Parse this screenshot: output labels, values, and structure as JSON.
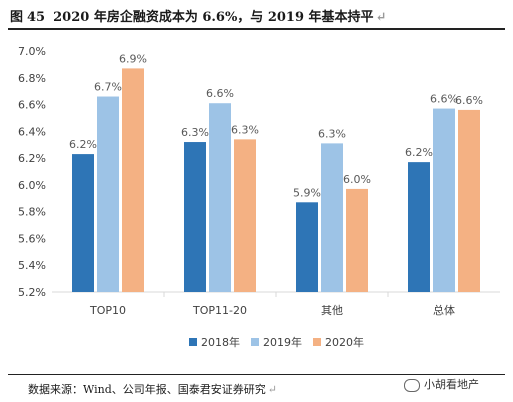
{
  "header": {
    "figure_label": "图",
    "figure_number": "45",
    "title": "2020 年房企融资成本为 6.6%，与 2019 年基本持平",
    "edit_mark": "↵"
  },
  "footer": {
    "source": "数据来源：Wind、公司年报、国泰君安证券研究",
    "edit_mark": "↵",
    "watermark": "小胡看地产"
  },
  "chart_data": {
    "type": "bar",
    "categories": [
      "TOP10",
      "TOP11-20",
      "其他",
      "总体"
    ],
    "series": [
      {
        "name": "2018年",
        "values": [
          6.23,
          6.32,
          5.87,
          6.17
        ],
        "labels": [
          "6.2%",
          "6.3%",
          "5.9%",
          "6.2%"
        ],
        "color": "#2e75b6"
      },
      {
        "name": "2019年",
        "values": [
          6.66,
          6.61,
          6.31,
          6.57
        ],
        "labels": [
          "6.7%",
          "6.6%",
          "6.3%",
          "6.6%"
        ],
        "color": "#9dc3e6"
      },
      {
        "name": "2020年",
        "values": [
          6.87,
          6.34,
          5.97,
          6.56
        ],
        "labels": [
          "6.9%",
          "6.3%",
          "6.0%",
          "6.6%"
        ],
        "color": "#f4b183"
      }
    ],
    "ylim": [
      5.2,
      7.0
    ],
    "yticks": [
      "5.2%",
      "5.4%",
      "5.6%",
      "5.8%",
      "6.0%",
      "6.2%",
      "6.4%",
      "6.6%",
      "6.8%",
      "7.0%"
    ],
    "legend_position": "bottom",
    "grid": false
  }
}
